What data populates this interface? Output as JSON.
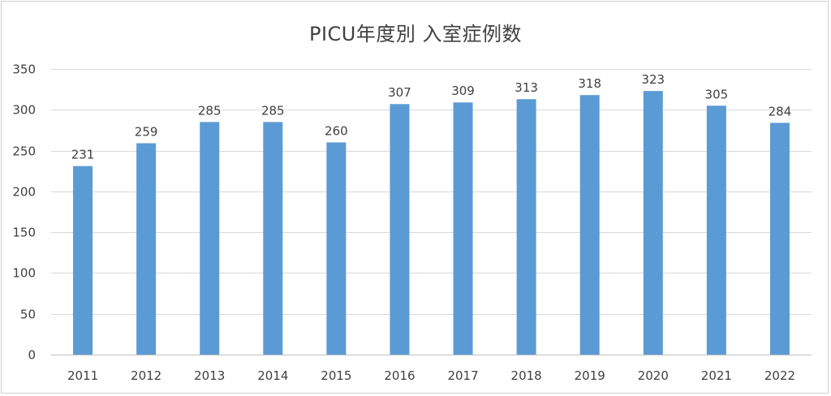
{
  "chart_data": {
    "type": "bar",
    "title": "PICU年度別 入室症例数",
    "categories": [
      "2011",
      "2012",
      "2013",
      "2014",
      "2015",
      "2016",
      "2017",
      "2018",
      "2019",
      "2020",
      "2021",
      "2022"
    ],
    "series": [
      {
        "values": [
          231,
          259,
          285,
          285,
          260,
          307,
          309,
          313,
          318,
          323,
          305,
          284
        ]
      }
    ],
    "ylim": [
      0,
      350
    ],
    "yticks": [
      0,
      50,
      100,
      150,
      200,
      250,
      300,
      350
    ],
    "grid": true,
    "data_labels": true,
    "bar_color": "#5b9bd5"
  }
}
